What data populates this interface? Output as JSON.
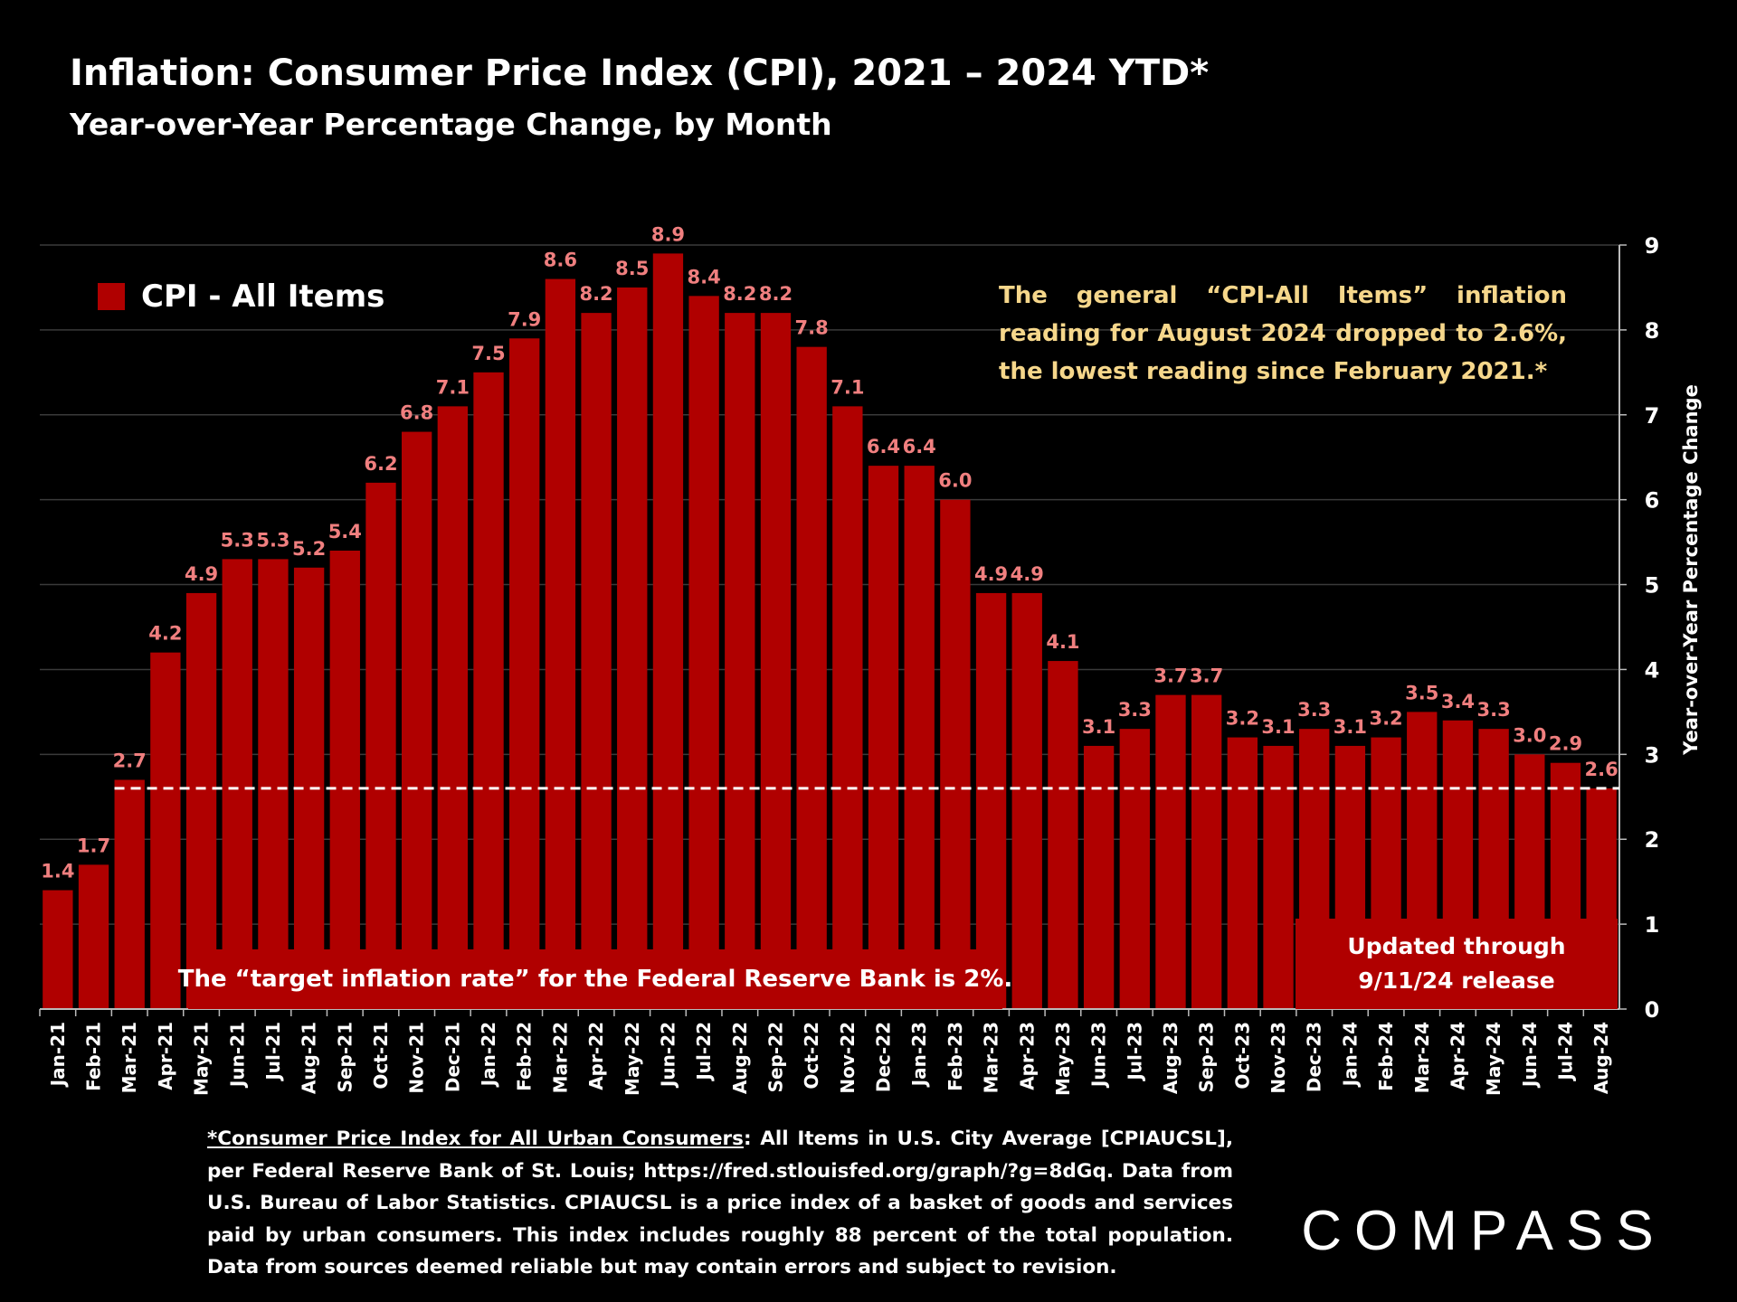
{
  "title": "Inflation: Consumer Price Index (CPI), 2021 – 2024 YTD*",
  "subtitle": "Year-over-Year Percentage Change, by Month",
  "legend": {
    "label": "CPI - All Items",
    "color": "#b00000"
  },
  "callout": "The general “CPI-All Items” inflation reading for August 2024 dropped to 2.6%, the lowest reading since February 2021.*",
  "target_note": "The “target inflation rate” for the Federal Reserve Bank is 2%.",
  "updated_note": {
    "line1": "Updated through",
    "line2": "9/11/24 release"
  },
  "footnote": {
    "link_text": "*Consumer Price Index for All Urban Consumers",
    "body": ": All Items in U.S. City Average [CPIAUCSL], per Federal Reserve Bank of St. Louis; https://fred.stlouisfed.org/graph/?g=8dGq. Data from U.S. Bureau of Labor Statistics. CPIAUCSL is a price index of a basket of goods and services paid by urban consumers. This index includes roughly 88 percent of the total population. Data from sources deemed reliable but may contain errors and subject to revision."
  },
  "logo_text": "COMPASS",
  "chart_data": {
    "type": "bar",
    "ylabel": "Year-over-Year Percentage Change",
    "ylim": [
      0,
      9
    ],
    "yticks": [
      0,
      1,
      2,
      3,
      4,
      5,
      6,
      7,
      8,
      9
    ],
    "y_axis_side": "right",
    "grid": true,
    "legend_position": "top-left",
    "bar_color": "#b00000",
    "label_color": "#f07f7f",
    "reference_line": {
      "value": 2.6,
      "style": "dashed",
      "color": "#ffffff"
    },
    "categories": [
      "Jan-21",
      "Feb-21",
      "Mar-21",
      "Apr-21",
      "May-21",
      "Jun-21",
      "Jul-21",
      "Aug-21",
      "Sep-21",
      "Oct-21",
      "Nov-21",
      "Dec-21",
      "Jan-22",
      "Feb-22",
      "Mar-22",
      "Apr-22",
      "May-22",
      "Jun-22",
      "Jul-22",
      "Aug-22",
      "Sep-22",
      "Oct-22",
      "Nov-22",
      "Dec-22",
      "Jan-23",
      "Feb-23",
      "Mar-23",
      "Apr-23",
      "May-23",
      "Jun-23",
      "Jul-23",
      "Aug-23",
      "Sep-23",
      "Oct-23",
      "Nov-23",
      "Dec-23",
      "Jan-24",
      "Feb-24",
      "Mar-24",
      "Apr-24",
      "May-24",
      "Jun-24",
      "Jul-24",
      "Aug-24"
    ],
    "series": [
      {
        "name": "CPI - All Items",
        "values": [
          1.4,
          1.7,
          2.7,
          4.2,
          4.9,
          5.3,
          5.3,
          5.2,
          5.4,
          6.2,
          6.8,
          7.1,
          7.5,
          7.9,
          8.6,
          8.2,
          8.5,
          8.9,
          8.4,
          8.2,
          8.2,
          7.8,
          7.1,
          6.4,
          6.4,
          6.0,
          4.9,
          4.9,
          4.1,
          3.1,
          3.3,
          3.7,
          3.7,
          3.2,
          3.1,
          3.3,
          3.1,
          3.2,
          3.5,
          3.4,
          3.3,
          3.0,
          2.9,
          2.6
        ],
        "labels": [
          "1.4",
          "1.7",
          "2.7",
          "4.2",
          "4.9",
          "5.3",
          "5.3",
          "5.2",
          "5.4",
          "6.2",
          "6.8",
          "7.1",
          "7.5",
          "7.9",
          "8.6",
          "8.2",
          "8.5",
          "8.9",
          "8.4",
          "8.2",
          "8.2",
          "7.8",
          "7.1",
          "6.4",
          "6.4",
          "6.0",
          "4.9",
          "4.9",
          "4.1",
          "3.1",
          "3.3",
          "3.7",
          "3.7",
          "3.2",
          "3.1",
          "3.3",
          "3.1",
          "3.2",
          "3.5",
          "3.4",
          "3.3",
          "3.0",
          "2.9",
          "2.6"
        ]
      }
    ]
  }
}
